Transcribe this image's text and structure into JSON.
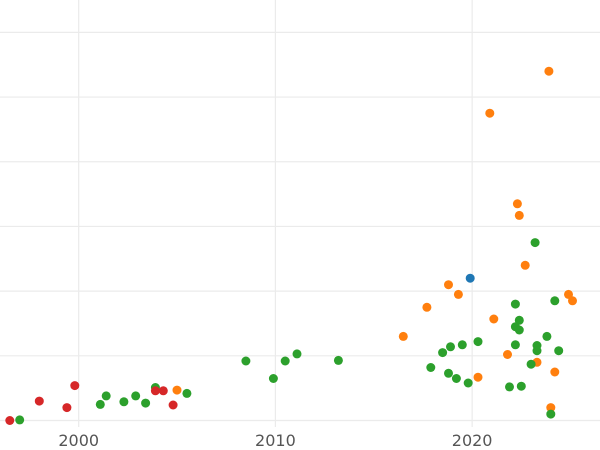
{
  "chart_data": {
    "type": "scatter",
    "title": "",
    "xlabel": "",
    "ylabel": "",
    "xlim": [
      1996.0,
      2026.5
    ],
    "ylim": [
      -0.1,
      6.5
    ],
    "x_ticks": [
      2000,
      2010,
      2020
    ],
    "x_tick_labels": [
      "2000",
      "2010",
      "2020"
    ],
    "y_gridlines": [
      0,
      1,
      2,
      3,
      4,
      5,
      6
    ],
    "grid": true,
    "legend": "none",
    "series": [
      {
        "color": "#1f77b4",
        "points": [
          [
            2019.9,
            2.2
          ]
        ]
      },
      {
        "color": "#ff7f0e",
        "points": [
          [
            2023.9,
            5.4
          ],
          [
            2020.9,
            4.75
          ],
          [
            2022.3,
            3.35
          ],
          [
            2022.4,
            3.17
          ],
          [
            2022.7,
            2.4
          ],
          [
            2018.8,
            2.1
          ],
          [
            2019.3,
            1.95
          ],
          [
            2024.9,
            1.95
          ],
          [
            2025.1,
            1.85
          ],
          [
            2017.7,
            1.75
          ],
          [
            2021.1,
            1.57
          ],
          [
            2016.5,
            1.3
          ],
          [
            2021.8,
            1.02
          ],
          [
            2023.3,
            0.9
          ],
          [
            2024.2,
            0.75
          ],
          [
            2020.3,
            0.67
          ],
          [
            2005.0,
            0.47
          ],
          [
            2024.0,
            0.2
          ]
        ]
      },
      {
        "color": "#2ca02c",
        "points": [
          [
            2023.2,
            2.75
          ],
          [
            2024.2,
            1.85
          ],
          [
            2022.2,
            1.8
          ],
          [
            2022.4,
            1.55
          ],
          [
            2022.2,
            1.45
          ],
          [
            2022.4,
            1.4
          ],
          [
            2023.8,
            1.3
          ],
          [
            2020.3,
            1.22
          ],
          [
            2019.5,
            1.17
          ],
          [
            2018.9,
            1.14
          ],
          [
            2023.3,
            1.16
          ],
          [
            2023.3,
            1.08
          ],
          [
            2024.4,
            1.08
          ],
          [
            2018.5,
            1.05
          ],
          [
            2011.1,
            1.03
          ],
          [
            2022.2,
            1.17
          ],
          [
            2008.5,
            0.92
          ],
          [
            2010.5,
            0.92
          ],
          [
            2013.2,
            0.93
          ],
          [
            2023.0,
            0.87
          ],
          [
            2017.9,
            0.82
          ],
          [
            2018.8,
            0.73
          ],
          [
            2019.2,
            0.65
          ],
          [
            2009.9,
            0.65
          ],
          [
            2019.8,
            0.58
          ],
          [
            2022.5,
            0.53
          ],
          [
            2021.9,
            0.52
          ],
          [
            2003.9,
            0.51
          ],
          [
            2005.5,
            0.42
          ],
          [
            2001.4,
            0.38
          ],
          [
            2002.9,
            0.38
          ],
          [
            2002.3,
            0.29
          ],
          [
            2003.4,
            0.27
          ],
          [
            2001.1,
            0.25
          ],
          [
            2024.0,
            0.1
          ],
          [
            1997.0,
            0.01
          ]
        ]
      },
      {
        "color": "#d62728",
        "points": [
          [
            1999.8,
            0.54
          ],
          [
            2003.9,
            0.46
          ],
          [
            2004.3,
            0.46
          ],
          [
            1998.0,
            0.3
          ],
          [
            2004.8,
            0.24
          ],
          [
            1999.4,
            0.2
          ],
          [
            1996.5,
            0.0
          ]
        ]
      }
    ]
  }
}
